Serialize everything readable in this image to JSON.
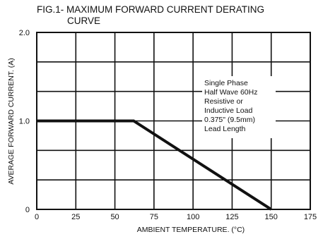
{
  "chart_data": {
    "type": "line",
    "title_line1": "FIG.1- MAXIMUM FORWARD CURRENT DERATING",
    "title_line2": "CURVE",
    "xlabel": "AMBIENT TEMPERATURE. (°C)",
    "ylabel": "AVERAGE FORWARD CURRENT. (A)",
    "xlim": [
      0,
      175
    ],
    "ylim": [
      0,
      2.0
    ],
    "x_ticks": [
      0,
      25,
      50,
      75,
      100,
      125,
      150,
      175
    ],
    "x_tick_labels": [
      "0",
      "25",
      "50",
      "75",
      "100",
      "125",
      "150",
      "175"
    ],
    "y_ticks": [
      0,
      1.0,
      2.0
    ],
    "y_tick_labels": [
      "0",
      "1.0",
      "2.0"
    ],
    "grid": true,
    "series": [
      {
        "x": [
          0,
          62,
          150
        ],
        "y": [
          1.0,
          1.0,
          0
        ]
      }
    ],
    "annotation": [
      "Single Phase",
      "Half Wave 60Hz",
      "Resistive or",
      "Inductive Load",
      "0.375\" (9.5mm)",
      "Lead Length"
    ]
  }
}
